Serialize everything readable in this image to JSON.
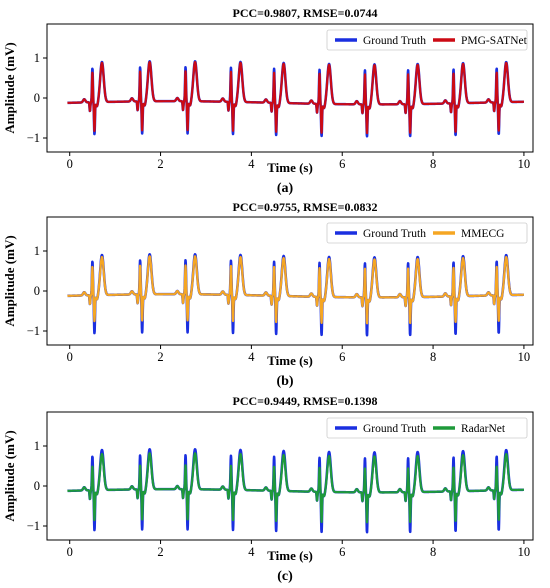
{
  "chart_data": [
    {
      "type": "line",
      "panel_caption": "(a)",
      "title": "PCC=0.9807, RMSE=0.0744",
      "xlabel": "Time (s)",
      "ylabel": "Amplitude (mV)",
      "xlim": [
        -0.5,
        10.2
      ],
      "ylim": [
        -1.35,
        1.85
      ],
      "xticks": [
        0,
        2,
        4,
        6,
        8,
        10
      ],
      "yticks": [
        -1,
        0,
        1
      ],
      "legend_position": "top-right",
      "beat_times": [
        0.5,
        1.55,
        2.55,
        3.55,
        4.5,
        5.5,
        6.5,
        7.45,
        8.45,
        9.4
      ],
      "series": [
        {
          "name": "Ground Truth",
          "color": "#1a2fe0",
          "r_amp": 0.85,
          "s_amp": -0.8,
          "t_amp": 1.0
        },
        {
          "name": "PMG-SATNet",
          "color": "#cc0a14",
          "r_amp": 0.75,
          "s_amp": -0.72,
          "t_amp": 0.98
        }
      ]
    },
    {
      "type": "line",
      "panel_caption": "(b)",
      "title": "PCC=0.9755, RMSE=0.0832",
      "xlabel": "Time (s)",
      "ylabel": "Amplitude (mV)",
      "xlim": [
        -0.5,
        10.2
      ],
      "ylim": [
        -1.35,
        1.85
      ],
      "xticks": [
        0,
        2,
        4,
        6,
        8,
        10
      ],
      "yticks": [
        -1,
        0,
        1
      ],
      "legend_position": "top-right",
      "beat_times": [
        0.5,
        1.55,
        2.55,
        3.55,
        4.5,
        5.5,
        6.5,
        7.45,
        8.45,
        9.4
      ],
      "series": [
        {
          "name": "Ground Truth",
          "color": "#1a2fe0",
          "r_amp": 0.85,
          "s_amp": -0.95,
          "t_amp": 1.0
        },
        {
          "name": "MMECG",
          "color": "#f5a623",
          "r_amp": 0.72,
          "s_amp": -0.65,
          "t_amp": 0.95
        }
      ]
    },
    {
      "type": "line",
      "panel_caption": "(c)",
      "title": "PCC=0.9449, RMSE=0.1398",
      "xlabel": "Time (s)",
      "ylabel": "Amplitude (mV)",
      "xlim": [
        -0.5,
        10.2
      ],
      "ylim": [
        -1.35,
        1.85
      ],
      "xticks": [
        0,
        2,
        4,
        6,
        8,
        10
      ],
      "yticks": [
        -1,
        0,
        1
      ],
      "legend_position": "top-right",
      "beat_times": [
        0.5,
        1.55,
        2.55,
        3.55,
        4.5,
        5.5,
        6.5,
        7.45,
        8.45,
        9.4
      ],
      "series": [
        {
          "name": "Ground Truth",
          "color": "#1a2fe0",
          "r_amp": 0.85,
          "s_amp": -1.0,
          "t_amp": 1.0
        },
        {
          "name": "RadarNet",
          "color": "#1e9a3a",
          "r_amp": 0.6,
          "s_amp": -0.75,
          "t_amp": 0.9
        }
      ]
    }
  ]
}
